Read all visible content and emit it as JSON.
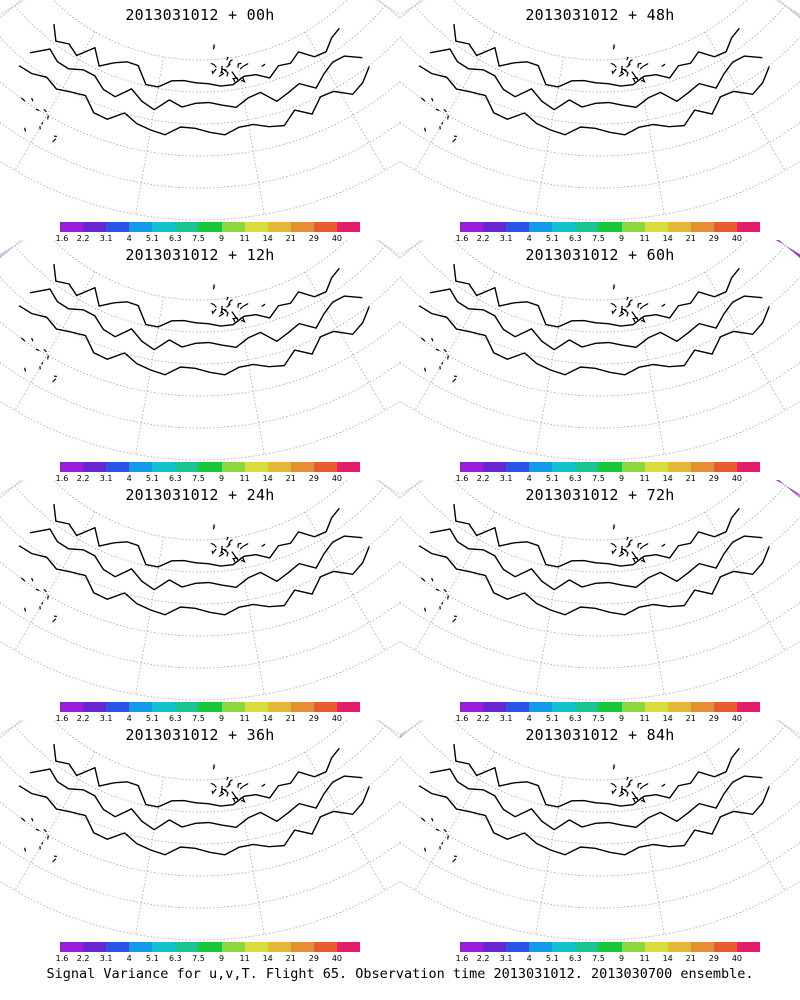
{
  "colorbar": {
    "colors": [
      "#9c1bd8",
      "#6a27d0",
      "#2b54e6",
      "#1599ea",
      "#14c2cc",
      "#19c48e",
      "#19c83a",
      "#8fd63a",
      "#d8dc3c",
      "#e2b836",
      "#e68e34",
      "#ea5b34",
      "#e61c6c"
    ],
    "tick_labels": [
      "1.6",
      "2.2",
      "3.1",
      "4",
      "5.1",
      "6.3",
      "7.5",
      "9",
      "11",
      "14",
      "21",
      "29",
      "40"
    ]
  },
  "panels": [
    {
      "title": "2013031012 + 00h",
      "intensity": 0.1
    },
    {
      "title": "2013031012 + 48h",
      "intensity": 0.5
    },
    {
      "title": "2013031012 + 12h",
      "intensity": 0.2
    },
    {
      "title": "2013031012 + 60h",
      "intensity": 0.6
    },
    {
      "title": "2013031012 + 24h",
      "intensity": 0.3
    },
    {
      "title": "2013031012 + 72h",
      "intensity": 0.75
    },
    {
      "title": "2013031012 + 36h",
      "intensity": 0.4
    },
    {
      "title": "2013031012 + 84h",
      "intensity": 0.85
    }
  ],
  "footer": "Signal Variance for u,v,T. Flight 65. Observation time 2013031012. 2013030700 ensemble."
}
